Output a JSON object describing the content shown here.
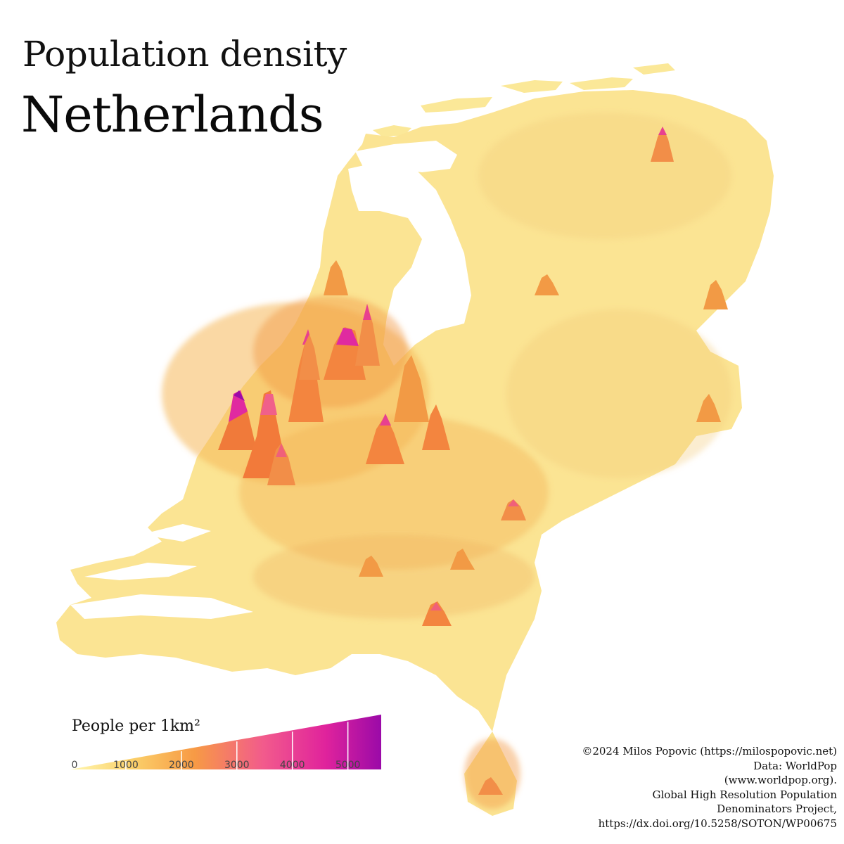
{
  "title": {
    "line1": "Population density",
    "line2": "Netherlands"
  },
  "legend": {
    "title": "People per 1km²",
    "min": 0,
    "max": 5600,
    "ticks": [
      "0",
      "1000",
      "2000",
      "3000",
      "4000",
      "5000"
    ],
    "tick_values": [
      0,
      1000,
      2000,
      3000,
      4000,
      5000
    ],
    "colors": [
      "#fff7b0",
      "#fbd06a",
      "#f79a45",
      "#f25b8c",
      "#e0239c",
      "#9b0aa8"
    ]
  },
  "peaks": [
    {
      "city": "",
      "density": 5600,
      "color": "#a010a8"
    },
    {
      "city": "",
      "density": 4300,
      "color": "#e02aa0"
    },
    {
      "city": "",
      "density": 3900,
      "color": "#e8408f"
    },
    {
      "city": "",
      "density": 3200,
      "color": "#f0607a"
    },
    {
      "city": "",
      "density": 2800,
      "color": "#f26a6a"
    },
    {
      "city": "",
      "density": 2600,
      "color": "#f27a4a"
    },
    {
      "city": "",
      "density": 2200,
      "color": "#f0905a"
    },
    {
      "city": "",
      "density": 2000,
      "color": "#f09050"
    }
  ],
  "credits": [
    "©2024 Milos Popovic (https://milospopovic.net)",
    "Data: WorldPop",
    "(www.worldpop.org).",
    "Global High Resolution Population",
    "Denominators Project,",
    "https://dx.doi.org/10.5258/SOTON/WP00675"
  ]
}
